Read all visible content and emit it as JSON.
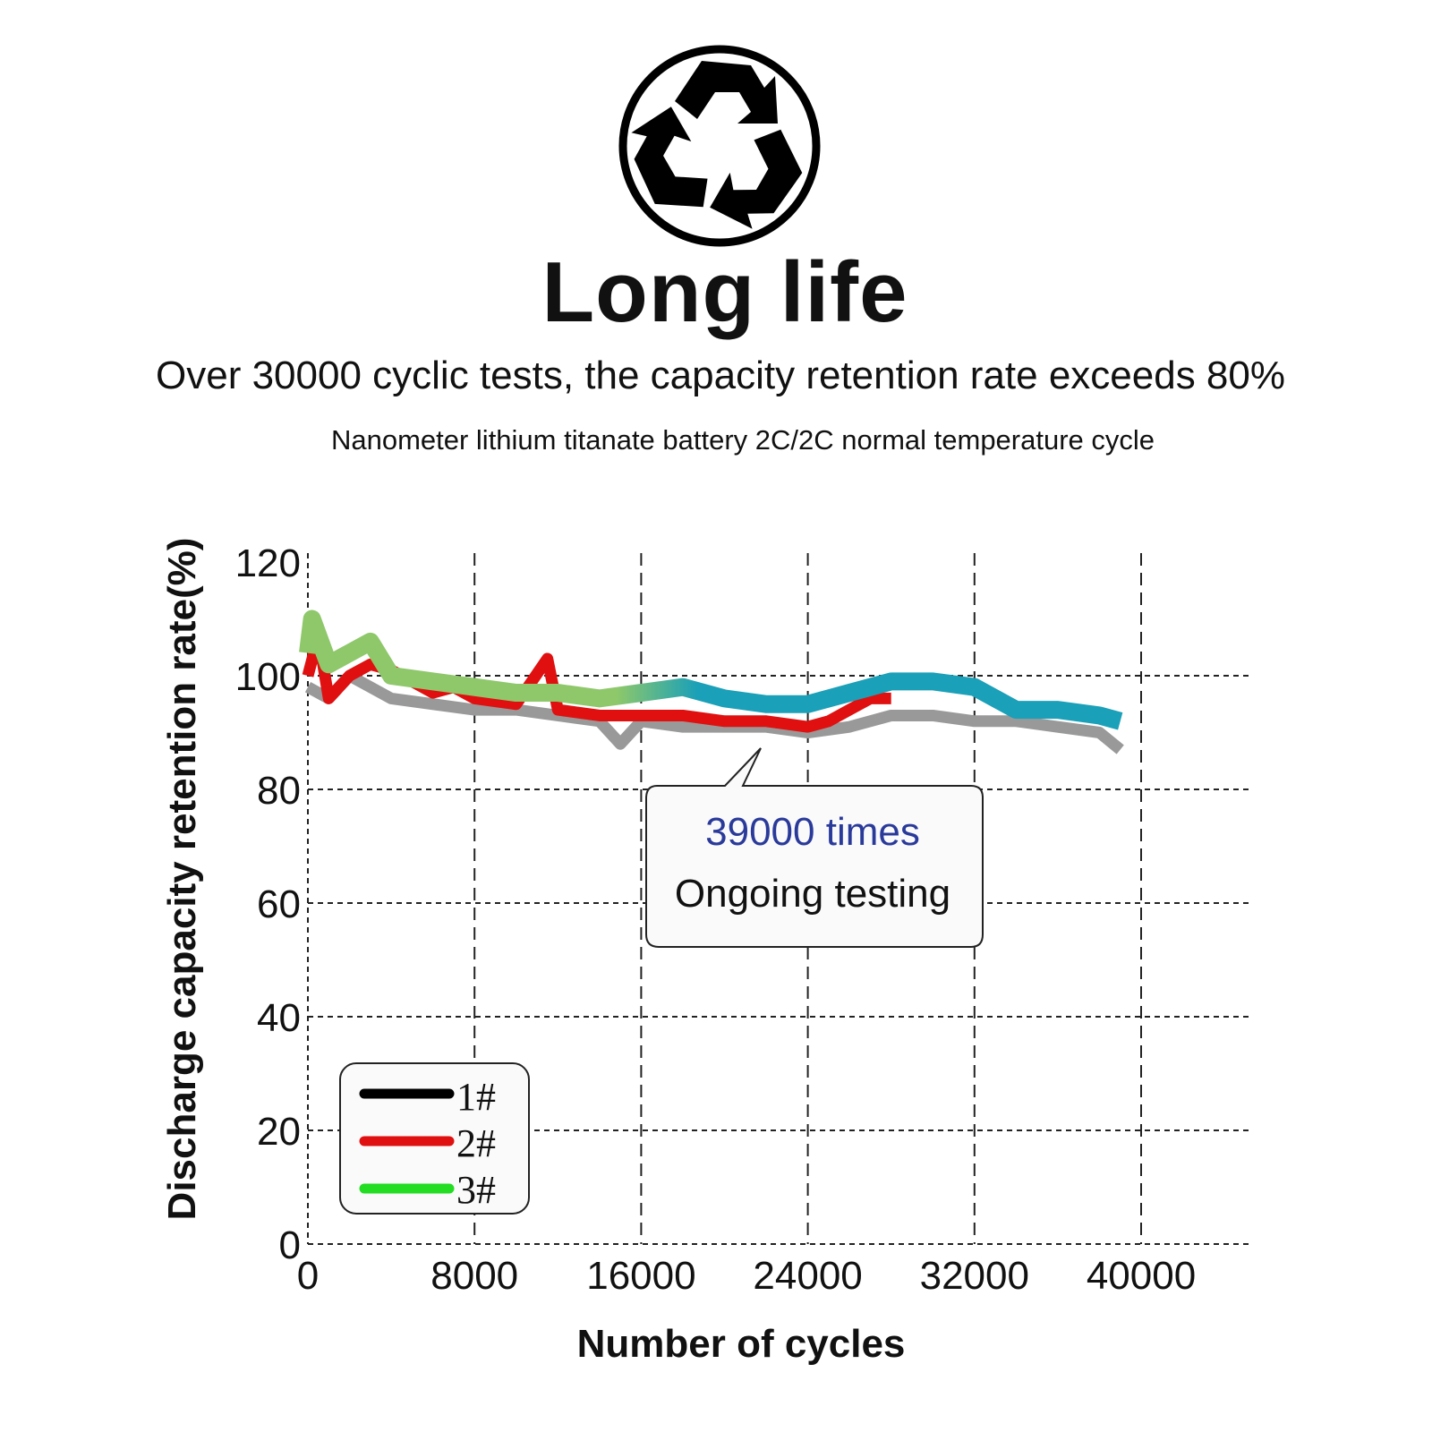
{
  "header": {
    "title": "Long life",
    "subtitle": "Over 30000 cyclic tests, the capacity retention rate exceeds 80%",
    "caption": "Nanometer lithium titanate battery 2C/2C normal temperature cycle",
    "icon": "recycle-icon"
  },
  "chart_data": {
    "type": "line",
    "title": "Nanometer lithium titanate battery 2C/2C normal temperature cycle",
    "xlabel": "Number of cycles",
    "ylabel": "Discharge capacity retention rate(%)",
    "xlim": [
      0,
      45000
    ],
    "ylim": [
      0,
      120
    ],
    "xticks": [
      0,
      8000,
      16000,
      24000,
      32000,
      40000
    ],
    "yticks": [
      0,
      20,
      40,
      60,
      80,
      100,
      120
    ],
    "xtick_labels": [
      "0",
      "8000",
      "16000",
      "24000",
      "32000",
      "40000"
    ],
    "ytick_labels": [
      "0",
      "20",
      "40",
      "60",
      "80",
      "100",
      "120"
    ],
    "grid": true,
    "legend_position": "bottom-left",
    "series": [
      {
        "name": "1#",
        "color": "#999999",
        "legend_color": "#000000",
        "x": [
          0,
          1000,
          2000,
          3000,
          4000,
          6000,
          8000,
          10000,
          12000,
          14000,
          15000,
          16000,
          18000,
          20000,
          22000,
          24000,
          26000,
          28000,
          30000,
          32000,
          34000,
          36000,
          38000,
          39000
        ],
        "y": [
          98,
          96,
          100,
          98,
          96,
          95,
          94,
          94,
          93,
          92,
          88,
          92,
          91,
          91,
          91,
          90,
          91,
          93,
          93,
          92,
          92,
          91,
          90,
          87
        ]
      },
      {
        "name": "2#",
        "color": "#e01010",
        "legend_color": "#e01010",
        "x": [
          0,
          500,
          1000,
          2000,
          3000,
          4000,
          5000,
          6000,
          7000,
          8000,
          10000,
          11500,
          12000,
          14000,
          16000,
          18000,
          20000,
          22000,
          24000,
          25000,
          26000,
          27000,
          28000
        ],
        "y": [
          100,
          107,
          96,
          100,
          102,
          101,
          99,
          97,
          98,
          96,
          95,
          103,
          94,
          93,
          93,
          93,
          92,
          92,
          91,
          92,
          94,
          96,
          96
        ]
      },
      {
        "name": "3#",
        "color": "#8ec86a",
        "color_end": "#1aa0b8",
        "legend_color": "#22dd22",
        "x": [
          0,
          200,
          1000,
          2000,
          3000,
          4000,
          6000,
          8000,
          10000,
          12000,
          14000,
          16000,
          18000,
          20000,
          22000,
          24000,
          26000,
          28000,
          30000,
          32000,
          34000,
          36000,
          38000,
          39000
        ],
        "y": [
          104,
          110,
          102,
          104,
          106,
          100,
          99,
          98,
          97,
          97,
          96,
          97,
          98,
          96,
          95,
          95,
          97,
          99,
          99,
          98,
          94,
          94,
          93,
          92
        ]
      }
    ],
    "annotation": {
      "line1": "39000 times",
      "line2": "Ongoing testing"
    }
  }
}
